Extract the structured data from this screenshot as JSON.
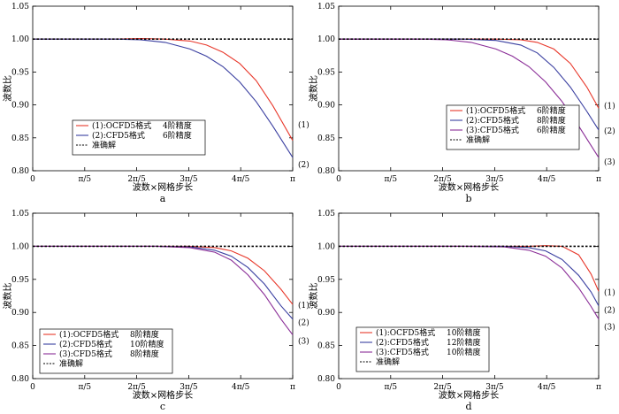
{
  "chart_data": [
    {
      "type": "line",
      "panel_label": "a",
      "xlabel": "波数×网格步长",
      "ylabel": "波数比",
      "xlim": [
        0,
        3.14159
      ],
      "ylim": [
        0.8,
        1.05
      ],
      "xticks": [
        0,
        0.62832,
        1.25664,
        1.88496,
        2.51327,
        3.14159
      ],
      "xtick_labels": [
        "0",
        "π/5",
        "2π/5",
        "3π/5",
        "4π/5",
        "π"
      ],
      "yticks": [
        0.8,
        0.85,
        0.9,
        0.95,
        1.0,
        1.05
      ],
      "ytick_labels": [
        "0.80",
        "0.85",
        "0.90",
        "0.95",
        "1.00",
        "1.05"
      ],
      "legend_position": "lower-left",
      "series": [
        {
          "name": "(1):OCFD5格式",
          "accuracy": "4阶精度",
          "curve_label": "(1)",
          "color": "#e8382b",
          "style": "solid",
          "x": [
            0,
            0.5,
            1.0,
            1.3,
            1.6,
            1.9,
            2.1,
            2.3,
            2.5,
            2.7,
            2.9,
            3.14159
          ],
          "y": [
            1.0,
            1.0,
            1.0,
            1.001,
            1.0,
            0.997,
            0.991,
            0.98,
            0.963,
            0.937,
            0.899,
            0.846
          ]
        },
        {
          "name": "(2):CFD5格式",
          "accuracy": "6阶精度",
          "curve_label": "(2)",
          "color": "#3a3fa0",
          "style": "solid",
          "x": [
            0,
            0.5,
            1.0,
            1.3,
            1.6,
            1.9,
            2.1,
            2.3,
            2.5,
            2.7,
            2.9,
            3.14159
          ],
          "y": [
            1.0,
            1.0,
            1.0,
            0.999,
            0.995,
            0.985,
            0.974,
            0.958,
            0.935,
            0.905,
            0.868,
            0.82
          ]
        },
        {
          "name": "准确解",
          "accuracy": "",
          "curve_label": "",
          "color": "#000000",
          "style": "dashed",
          "x": [
            0,
            3.14159
          ],
          "y": [
            1.0,
            1.0
          ]
        }
      ]
    },
    {
      "type": "line",
      "panel_label": "b",
      "xlabel": "波数×网格步长",
      "ylabel": "波数比",
      "xlim": [
        0,
        3.14159
      ],
      "ylim": [
        0.8,
        1.05
      ],
      "xticks": [
        0,
        0.62832,
        1.25664,
        1.88496,
        2.51327,
        3.14159
      ],
      "xtick_labels": [
        "0",
        "π/5",
        "2π/5",
        "3π/5",
        "4π/5",
        "π"
      ],
      "yticks": [
        0.8,
        0.85,
        0.9,
        0.95,
        1.0,
        1.05
      ],
      "ytick_labels": [
        "0.80",
        "0.85",
        "0.90",
        "0.95",
        "1.00",
        "1.05"
      ],
      "legend_position": "lower-right",
      "series": [
        {
          "name": "(1):OCFD5格式",
          "accuracy": "6阶精度",
          "curve_label": "(1)",
          "color": "#e8382b",
          "style": "solid",
          "x": [
            0,
            0.5,
            1.0,
            1.5,
            1.9,
            2.2,
            2.4,
            2.6,
            2.8,
            3.0,
            3.14159
          ],
          "y": [
            1.0,
            1.0,
            1.0,
            1.0,
            1.0,
            0.999,
            0.995,
            0.985,
            0.963,
            0.927,
            0.895
          ]
        },
        {
          "name": "(2):CFD5格式",
          "accuracy": "8阶精度",
          "curve_label": "(2)",
          "color": "#3a3fa0",
          "style": "solid",
          "x": [
            0,
            0.5,
            1.0,
            1.5,
            1.9,
            2.2,
            2.4,
            2.6,
            2.8,
            3.0,
            3.14159
          ],
          "y": [
            1.0,
            1.0,
            1.0,
            1.0,
            0.998,
            0.991,
            0.979,
            0.957,
            0.927,
            0.89,
            0.862
          ]
        },
        {
          "name": "(3):CFD5格式",
          "accuracy": "6阶精度",
          "curve_label": "(3)",
          "color": "#8a2d97",
          "style": "solid",
          "x": [
            0,
            0.5,
            1.0,
            1.3,
            1.6,
            1.9,
            2.1,
            2.3,
            2.5,
            2.7,
            2.9,
            3.14159
          ],
          "y": [
            1.0,
            1.0,
            1.0,
            0.999,
            0.995,
            0.985,
            0.974,
            0.958,
            0.935,
            0.905,
            0.868,
            0.82
          ]
        },
        {
          "name": "准确解",
          "accuracy": "",
          "curve_label": "",
          "color": "#000000",
          "style": "dashed",
          "x": [
            0,
            3.14159
          ],
          "y": [
            1.0,
            1.0
          ]
        }
      ]
    },
    {
      "type": "line",
      "panel_label": "c",
      "xlabel": "波数×网格步长",
      "ylabel": "波数比",
      "xlim": [
        0,
        3.14159
      ],
      "ylim": [
        0.8,
        1.05
      ],
      "xticks": [
        0,
        0.62832,
        1.25664,
        1.88496,
        2.51327,
        3.14159
      ],
      "xtick_labels": [
        "0",
        "π/5",
        "2π/5",
        "3π/5",
        "4π/5",
        "π"
      ],
      "yticks": [
        0.8,
        0.85,
        0.9,
        0.95,
        1.0,
        1.05
      ],
      "ytick_labels": [
        "0.80",
        "0.85",
        "0.90",
        "0.95",
        "1.00",
        "1.05"
      ],
      "legend_position": "lower-left",
      "series": [
        {
          "name": "(1):OCFD5格式",
          "accuracy": "8阶精度",
          "curve_label": "(1)",
          "color": "#e8382b",
          "style": "solid",
          "x": [
            0,
            0.5,
            1.0,
            1.5,
            1.9,
            2.2,
            2.4,
            2.6,
            2.8,
            3.0,
            3.14159
          ],
          "y": [
            1.0,
            1.0,
            1.0,
            1.0,
            1.0,
            0.998,
            0.993,
            0.982,
            0.963,
            0.935,
            0.912
          ]
        },
        {
          "name": "(2):CFD5格式",
          "accuracy": "10阶精度",
          "curve_label": "(2)",
          "color": "#3a3fa0",
          "style": "solid",
          "x": [
            0,
            0.5,
            1.0,
            1.5,
            1.9,
            2.2,
            2.4,
            2.6,
            2.8,
            3.0,
            3.14159
          ],
          "y": [
            1.0,
            1.0,
            1.0,
            1.0,
            0.999,
            0.994,
            0.985,
            0.968,
            0.943,
            0.91,
            0.89
          ]
        },
        {
          "name": "(3):CFD5格式",
          "accuracy": "8阶精度",
          "curve_label": "(3)",
          "color": "#8a2d97",
          "style": "solid",
          "x": [
            0,
            0.5,
            1.0,
            1.5,
            1.9,
            2.2,
            2.4,
            2.6,
            2.8,
            3.0,
            3.14159
          ],
          "y": [
            1.0,
            1.0,
            1.0,
            1.0,
            0.998,
            0.991,
            0.979,
            0.957,
            0.927,
            0.89,
            0.866
          ]
        },
        {
          "name": "准确解",
          "accuracy": "",
          "curve_label": "",
          "color": "#000000",
          "style": "dashed",
          "x": [
            0,
            3.14159
          ],
          "y": [
            1.0,
            1.0
          ]
        }
      ]
    },
    {
      "type": "line",
      "panel_label": "d",
      "xlabel": "波数×网格步长",
      "ylabel": "波数比",
      "xlim": [
        0,
        3.14159
      ],
      "ylim": [
        0.8,
        1.05
      ],
      "xticks": [
        0,
        0.62832,
        1.25664,
        1.88496,
        2.51327,
        3.14159
      ],
      "xtick_labels": [
        "0",
        "π/5",
        "2π/5",
        "3π/5",
        "4π/5",
        "π"
      ],
      "yticks": [
        0.8,
        0.85,
        0.9,
        0.95,
        1.0,
        1.05
      ],
      "ytick_labels": [
        "0.80",
        "0.85",
        "0.90",
        "0.95",
        "1.00",
        "1.05"
      ],
      "legend_position": "lower-right",
      "series": [
        {
          "name": "(1):OCFD5格式",
          "accuracy": "10阶精度",
          "curve_label": "(1)",
          "color": "#e8382b",
          "style": "solid",
          "x": [
            0,
            0.5,
            1.0,
            1.5,
            2.0,
            2.3,
            2.5,
            2.7,
            2.9,
            3.05,
            3.14159
          ],
          "y": [
            1.0,
            1.0,
            1.0,
            1.0,
            1.0,
            1.0,
            1.001,
            1.0,
            0.987,
            0.958,
            0.932
          ]
        },
        {
          "name": "(2):CFD5格式",
          "accuracy": "12阶精度",
          "curve_label": "(2)",
          "color": "#3a3fa0",
          "style": "solid",
          "x": [
            0,
            0.5,
            1.0,
            1.5,
            2.0,
            2.3,
            2.5,
            2.7,
            2.9,
            3.05,
            3.14159
          ],
          "y": [
            1.0,
            1.0,
            1.0,
            1.0,
            1.0,
            0.998,
            0.993,
            0.98,
            0.956,
            0.931,
            0.91
          ]
        },
        {
          "name": "(3):CFD5格式",
          "accuracy": "10阶精度",
          "curve_label": "(3)",
          "color": "#8a2d97",
          "style": "solid",
          "x": [
            0,
            0.5,
            1.0,
            1.5,
            2.0,
            2.3,
            2.5,
            2.7,
            2.9,
            3.05,
            3.14159
          ],
          "y": [
            1.0,
            1.0,
            1.0,
            1.0,
            0.999,
            0.994,
            0.985,
            0.967,
            0.937,
            0.909,
            0.89
          ]
        },
        {
          "name": "准确解",
          "accuracy": "",
          "curve_label": "",
          "color": "#000000",
          "style": "dashed",
          "x": [
            0,
            3.14159
          ],
          "y": [
            1.0,
            1.0
          ]
        }
      ]
    }
  ]
}
